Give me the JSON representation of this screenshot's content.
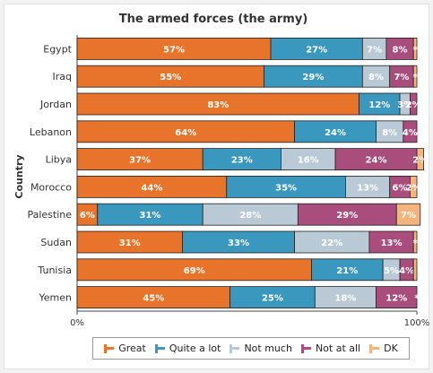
{
  "chart_data": {
    "type": "bar",
    "orientation": "horizontal",
    "stacked": true,
    "title": "The armed forces (the army)",
    "ylabel": "Country",
    "xlabel": "",
    "xlim": [
      0,
      100
    ],
    "x_tick_labels": [
      "0%",
      "100%"
    ],
    "categories": [
      "Egypt",
      "Iraq",
      "Jordan",
      "Lebanon",
      "Libya",
      "Morocco",
      "Palestine",
      "Sudan",
      "Tunisia",
      "Yemen"
    ],
    "series": [
      {
        "name": "Great",
        "color": "#e8732a",
        "values": [
          57,
          55,
          83,
          64,
          37,
          44,
          6,
          31,
          69,
          45
        ],
        "labels": [
          "57%",
          "55%",
          "83%",
          "64%",
          "37%",
          "44%",
          "6%",
          "31%",
          "69%",
          "45%"
        ]
      },
      {
        "name": "Quite a lot",
        "color": "#3a97bd",
        "values": [
          27,
          29,
          12,
          24,
          23,
          35,
          31,
          33,
          21,
          25
        ],
        "labels": [
          "27%",
          "29%",
          "12%",
          "24%",
          "23%",
          "35%",
          "31%",
          "33%",
          "21%",
          "25%"
        ]
      },
      {
        "name": "Not much",
        "color": "#b9cad6",
        "values": [
          7,
          8,
          3,
          8,
          16,
          13,
          28,
          22,
          5,
          18
        ],
        "labels": [
          "7%",
          "8%",
          "3%",
          "8%",
          "16%",
          "13%",
          "28%",
          "22%",
          "5%",
          "18%"
        ]
      },
      {
        "name": "Not at all",
        "color": "#a94d7d",
        "values": [
          8,
          7,
          2,
          4,
          24,
          6,
          29,
          13,
          4,
          12
        ],
        "labels": [
          "8%",
          "7%",
          "2%",
          "4%",
          "24%",
          "6%",
          "29%",
          "13%",
          "4%",
          "12%"
        ]
      },
      {
        "name": "DK",
        "color": "#f5b47d",
        "values": [
          1,
          1,
          0,
          0,
          2,
          2,
          7,
          1,
          1,
          0
        ],
        "labels": [
          "*",
          "*",
          "",
          "",
          "2%",
          "2%",
          "7%",
          "*",
          "",
          "*"
        ]
      }
    ],
    "grid": false,
    "legend_position": "bottom"
  }
}
